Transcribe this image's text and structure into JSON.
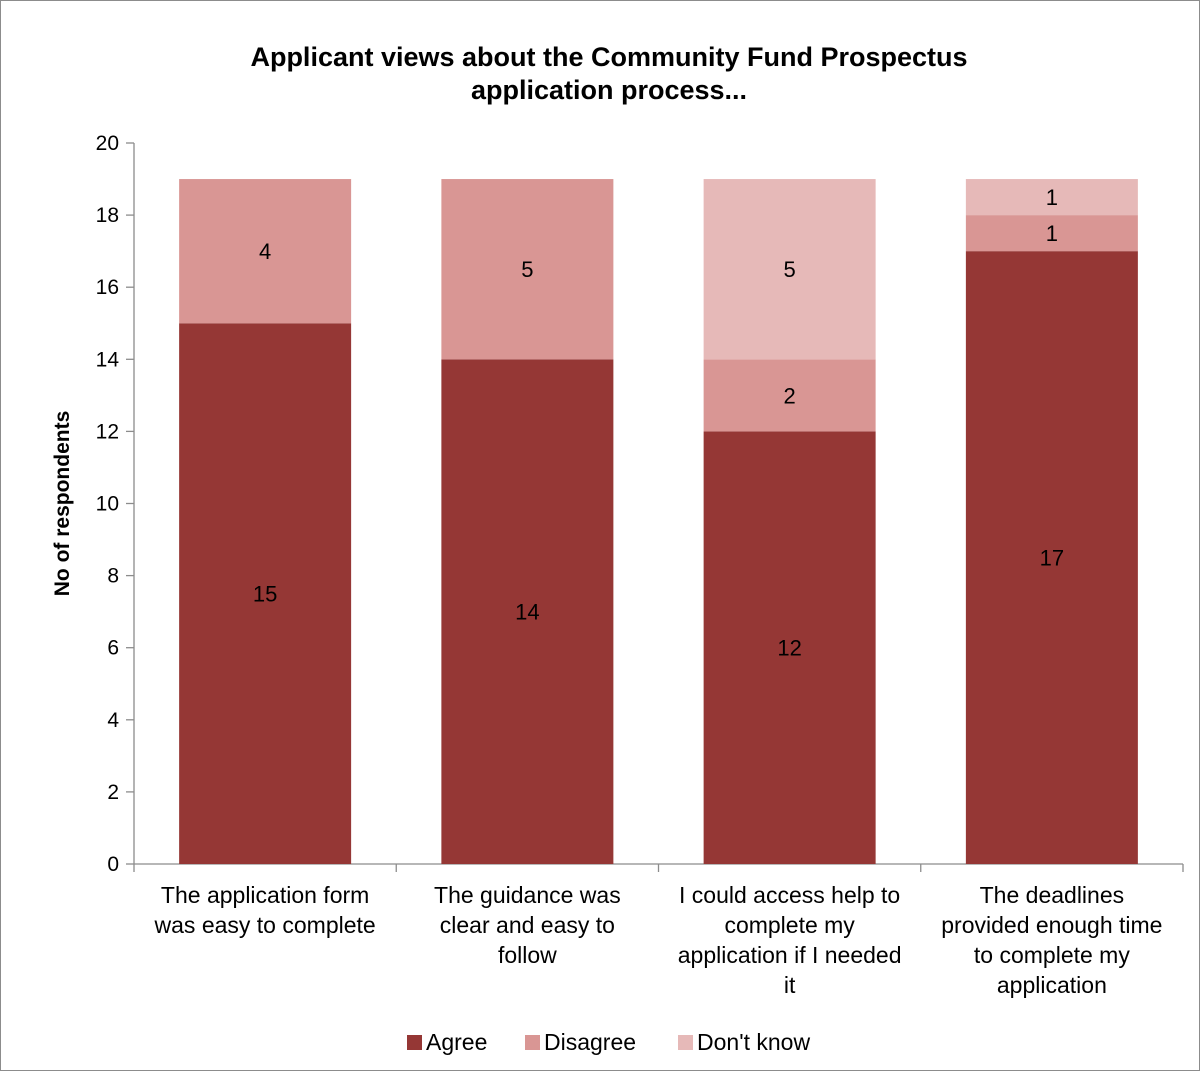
{
  "chart_data": {
    "type": "bar",
    "stacked": true,
    "title": [
      "Applicant views about the Community Fund Prospectus",
      "application process..."
    ],
    "xlabel": "",
    "ylabel": "No of respondents",
    "ylim": [
      0,
      20
    ],
    "yticks": [
      0,
      2,
      4,
      6,
      8,
      10,
      12,
      14,
      16,
      18,
      20
    ],
    "grid": false,
    "legend_position": "bottom",
    "categories": [
      [
        "The application form",
        "was easy to complete"
      ],
      [
        "The guidance was",
        "clear and easy to",
        "follow"
      ],
      [
        "I could access help to",
        "complete my",
        "application if I needed",
        "it"
      ],
      [
        "The deadlines",
        "provided enough time",
        "to complete my",
        "application"
      ]
    ],
    "series": [
      {
        "name": "Agree",
        "color": "#953735",
        "values": [
          15,
          14,
          12,
          17
        ],
        "labels": [
          "15",
          "14",
          "12",
          "17"
        ]
      },
      {
        "name": "Disagree",
        "color": "#d99694",
        "values": [
          4,
          5,
          2,
          1
        ],
        "labels": [
          "4",
          "5",
          "2",
          "1"
        ]
      },
      {
        "name": "Don't know",
        "color": "#e6b9b8",
        "values": [
          0,
          0,
          5,
          1
        ],
        "labels": [
          "",
          "",
          "5",
          "1"
        ]
      }
    ]
  }
}
